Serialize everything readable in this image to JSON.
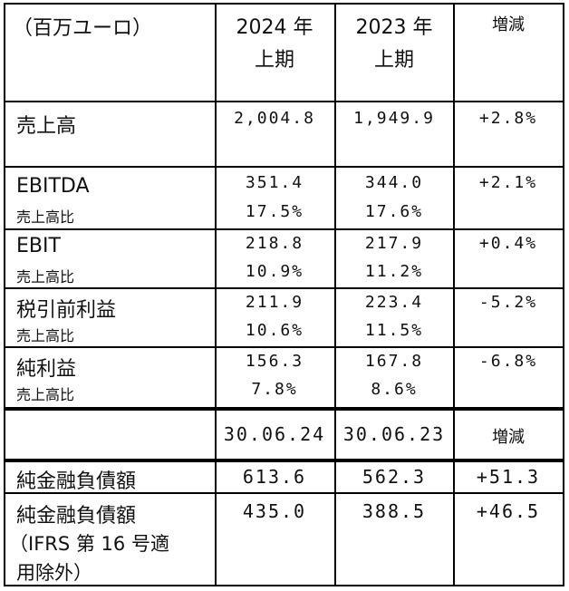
{
  "header": {
    "unit": "（百万ユーロ）",
    "col_2024_l1": "2024 年",
    "col_2024_l2": "上期",
    "col_2023_l1": "2023 年",
    "col_2023_l2": "上期",
    "col_change": "増減"
  },
  "rows": [
    {
      "label": "売上高",
      "v2024": "2,004.8",
      "v2023": "1,949.9",
      "change": "+2.8%"
    },
    {
      "label": "EBITDA",
      "sub": "売上高比",
      "v2024": "351.4",
      "v2023": "344.0",
      "change": "+2.1%",
      "s2024": "17.5%",
      "s2023": "17.6%"
    },
    {
      "label": "EBIT",
      "sub": "売上高比",
      "v2024": "218.8",
      "v2023": "217.9",
      "change": "+0.4%",
      "s2024": "10.9%",
      "s2023": "11.2%"
    },
    {
      "label": "税引前利益",
      "sub": "売上高比",
      "v2024": "211.9",
      "v2023": "223.4",
      "change": "-5.2%",
      "s2024": "10.6%",
      "s2023": "11.5%"
    },
    {
      "label": "純利益",
      "sub": "売上高比",
      "v2024": "156.3",
      "v2023": "167.8",
      "change": "-6.8%",
      "s2024": "7.8%",
      "s2023": "8.6%"
    }
  ],
  "header2": {
    "col_2024": "30.06.24",
    "col_2023": "30.06.23",
    "col_change": "増減"
  },
  "rows2": [
    {
      "label": "純金融負債額",
      "v2024": "613.6",
      "v2023": "562.3",
      "change": "+51.3"
    },
    {
      "label_l1": "純金融負債額",
      "label_l2": "（IFRS 第 16 号適",
      "label_l3": "用除外）",
      "v2024": "435.0",
      "v2023": "388.5",
      "change": "+46.5"
    }
  ]
}
